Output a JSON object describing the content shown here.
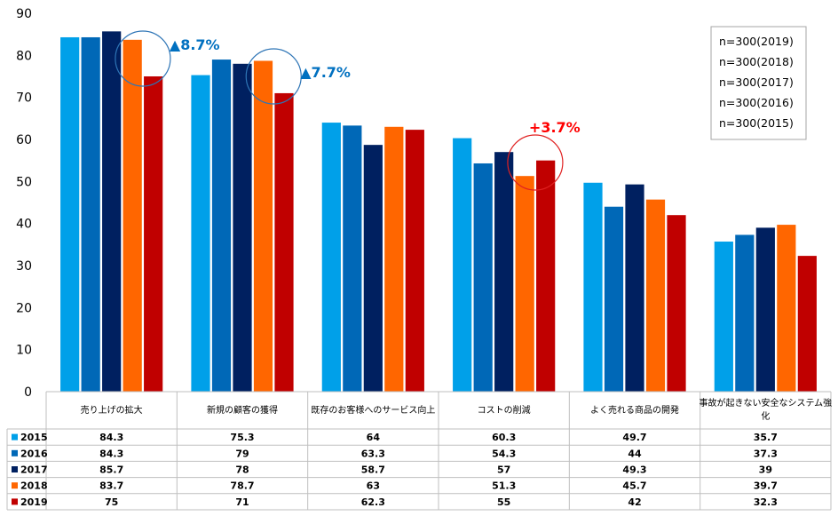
{
  "chart_data": {
    "type": "bar",
    "ylim": [
      0,
      90
    ],
    "yticks": [
      "0",
      "10",
      "20",
      "30",
      "40",
      "50",
      "60",
      "70",
      "80",
      "90"
    ],
    "grid": false,
    "categories": [
      "売り上げの拡大",
      "新規の顧客の獲得",
      "既存のお客様へのサービス向上",
      "コストの削減",
      "よく売れる商品の開発",
      "事故が起きない安全なシステム強化"
    ],
    "series": [
      {
        "name": "2015",
        "color": "#00a0e9",
        "values": [
          84.3,
          75.3,
          64,
          60.3,
          49.7,
          35.7
        ],
        "labels": [
          "84.3",
          "75.3",
          "64",
          "60.3",
          "49.7",
          "35.7"
        ]
      },
      {
        "name": "2016",
        "color": "#0068b7",
        "values": [
          84.3,
          79,
          63.3,
          54.3,
          44,
          37.3
        ],
        "labels": [
          "84.3",
          "79",
          "63.3",
          "54.3",
          "44",
          "37.3"
        ]
      },
      {
        "name": "2017",
        "color": "#002060",
        "values": [
          85.7,
          78,
          58.7,
          57,
          49.3,
          39
        ],
        "labels": [
          "85.7",
          "78",
          "58.7",
          "57",
          "49.3",
          "39"
        ]
      },
      {
        "name": "2018",
        "color": "#ff6600",
        "values": [
          83.7,
          78.7,
          63,
          51.3,
          45.7,
          39.7
        ],
        "labels": [
          "83.7",
          "78.7",
          "63",
          "51.3",
          "45.7",
          "39.7"
        ]
      },
      {
        "name": "2019",
        "color": "#c00000",
        "values": [
          75,
          71,
          62.3,
          55,
          42,
          32.3
        ],
        "labels": [
          "75",
          "71",
          "62.3",
          "55",
          "42",
          "32.3"
        ]
      }
    ],
    "legend_box": {
      "placement": "top-right",
      "lines": [
        "n=300(2019)",
        "n=300(2018)",
        "n=300(2017)",
        "n=300(2016)",
        "n=300(2015)"
      ]
    },
    "annotations": [
      {
        "text": "▲8.7%",
        "color": "#0070c0",
        "category_index": 0
      },
      {
        "text": "▲7.7%",
        "color": "#0070c0",
        "category_index": 1
      },
      {
        "text": "+3.7%",
        "color": "#ff0000",
        "category_index": 3
      }
    ],
    "circle_colors": {
      "blue": "#2e75b6",
      "red": "#e02020"
    },
    "axis_color": "#bfbfbf",
    "text_color": "#000000"
  }
}
